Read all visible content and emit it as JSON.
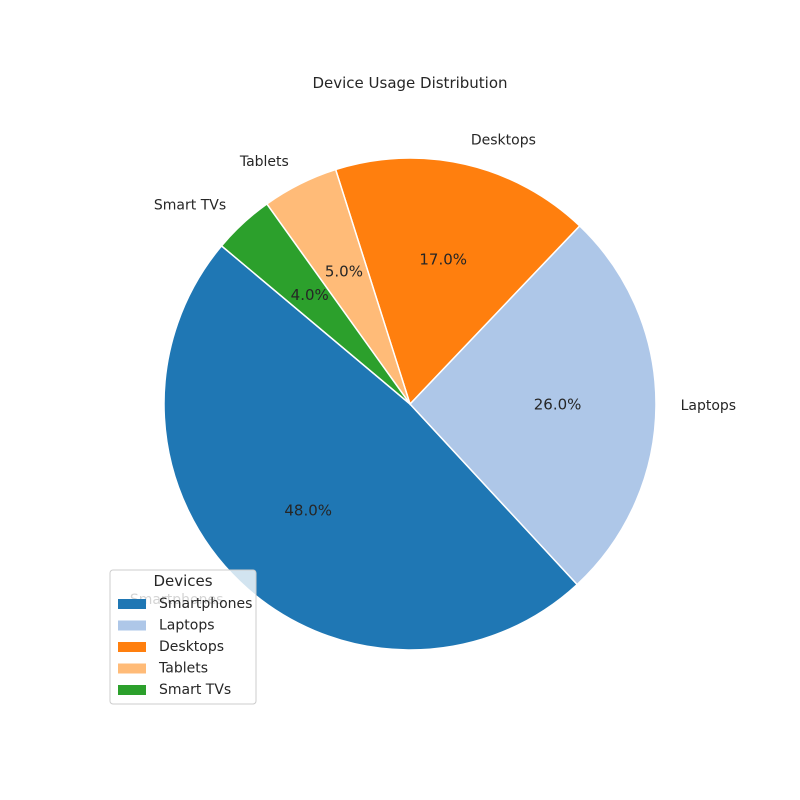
{
  "chart_data": {
    "type": "pie",
    "title": "Device Usage Distribution",
    "categories": [
      "Smartphones",
      "Laptops",
      "Desktops",
      "Tablets",
      "Smart TVs"
    ],
    "values": [
      48.0,
      26.0,
      17.0,
      5.0,
      4.0
    ],
    "percent_labels": [
      "48.0%",
      "26.0%",
      "17.0%",
      "5.0%",
      "4.0%"
    ],
    "colors": [
      "#1f77b4",
      "#aec7e8",
      "#ff7f0e",
      "#ffbb78",
      "#2ca02c"
    ],
    "start_angle_deg": 140,
    "direction": "counterclockwise",
    "legend": {
      "title": "Devices",
      "placement": "lower-left",
      "entries": [
        "Smartphones",
        "Laptops",
        "Desktops",
        "Tablets",
        "Smart TVs"
      ]
    }
  }
}
